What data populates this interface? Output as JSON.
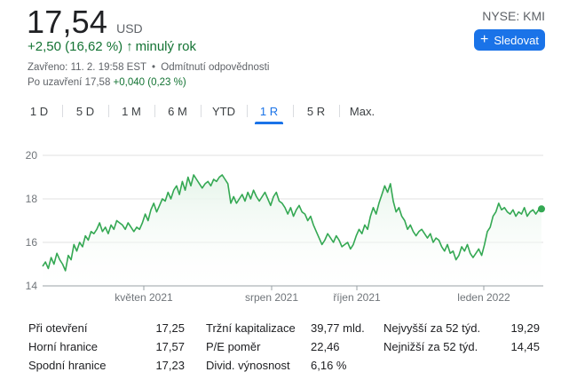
{
  "quote": {
    "price": "17,54",
    "currency": "USD",
    "change": "+2,50 (16,62 %)",
    "change_arrow": "🡑",
    "change_period": "minulý rok",
    "closed_label": "Zavřeno: 11. 2. 19:58 EST",
    "closed_sep": "•",
    "disclaimer": "Odmítnutí odpovědnosti",
    "after_label": "Po uzavření 17,58",
    "after_change": "+0,040 (0,23 %)"
  },
  "header": {
    "ticker": "NYSE: KMI",
    "follow_label": "Sledovat",
    "follow_icon": "plus-icon"
  },
  "tabs": [
    {
      "label": "1 D",
      "active": false
    },
    {
      "label": "5 D",
      "active": false
    },
    {
      "label": "1 M",
      "active": false
    },
    {
      "label": "6 M",
      "active": false
    },
    {
      "label": "YTD",
      "active": false
    },
    {
      "label": "1 R",
      "active": true
    },
    {
      "label": "5 R",
      "active": false
    },
    {
      "label": "Max.",
      "active": false
    }
  ],
  "colors": {
    "line": "#34a853",
    "fill_top": "#e6f4ea",
    "grid": "#e0e0e0",
    "axis": "#9aa0a6",
    "accent": "#1a73e8",
    "positive": "#137333"
  },
  "chart_data": {
    "type": "line",
    "y_ticks": [
      "20",
      "18",
      "16",
      "14"
    ],
    "ylim": [
      14,
      20
    ],
    "x_tick_labels": [
      "květen 2021",
      "srpen 2021",
      "říjen 2021",
      "leden 2022"
    ],
    "grid": true,
    "series": [
      {
        "values": [
          14.9,
          15.1,
          14.8,
          15.3,
          15.0,
          15.5,
          15.2,
          15.0,
          14.7,
          15.4,
          15.2,
          15.9,
          15.6,
          16.0,
          15.8,
          16.3,
          16.1,
          16.5,
          16.4,
          16.6,
          16.9,
          16.5,
          16.7,
          16.4,
          16.8,
          16.6,
          17.0,
          16.9,
          16.8,
          16.6,
          16.9,
          16.7,
          16.5,
          16.7,
          16.6,
          16.9,
          17.3,
          17.0,
          17.5,
          17.8,
          17.4,
          17.7,
          18.0,
          17.9,
          18.3,
          18.0,
          18.4,
          18.6,
          18.2,
          18.8,
          18.4,
          19.0,
          18.6,
          19.1,
          18.9,
          18.7,
          18.5,
          18.7,
          18.8,
          18.6,
          18.9,
          18.8,
          19.0,
          19.1,
          18.9,
          18.7,
          17.8,
          18.1,
          17.8,
          18.0,
          18.2,
          17.9,
          18.3,
          18.0,
          18.4,
          18.1,
          17.9,
          18.1,
          18.3,
          18.0,
          17.7,
          18.1,
          18.3,
          17.9,
          17.8,
          17.6,
          17.3,
          17.6,
          17.2,
          17.5,
          17.7,
          17.4,
          17.3,
          17.0,
          17.2,
          16.8,
          16.5,
          16.2,
          15.9,
          16.1,
          16.4,
          16.2,
          16.0,
          16.3,
          16.1,
          15.8,
          15.9,
          16.0,
          15.7,
          15.9,
          16.3,
          16.6,
          16.4,
          16.8,
          16.6,
          17.2,
          17.6,
          17.3,
          17.8,
          18.2,
          18.6,
          18.3,
          18.7,
          17.9,
          17.4,
          17.6,
          17.2,
          17.0,
          16.6,
          16.8,
          16.5,
          16.3,
          16.5,
          16.6,
          16.4,
          16.2,
          16.4,
          16.0,
          16.2,
          16.1,
          15.8,
          15.6,
          15.9,
          15.5,
          15.6,
          15.2,
          15.4,
          15.8,
          15.6,
          15.9,
          15.5,
          15.3,
          15.5,
          15.7,
          15.4,
          15.9,
          16.5,
          16.7,
          17.2,
          17.4,
          17.8,
          17.5,
          17.6,
          17.4,
          17.3,
          17.5,
          17.2,
          17.4,
          17.3,
          17.6,
          17.2,
          17.4,
          17.5,
          17.3,
          17.5,
          17.54
        ]
      }
    ]
  },
  "stats": {
    "col1": [
      {
        "label": "Při otevření",
        "value": "17,25"
      },
      {
        "label": "Horní hranice",
        "value": "17,57"
      },
      {
        "label": "Spodní hranice",
        "value": "17,23"
      }
    ],
    "col2": [
      {
        "label": "Tržní kapitalizace",
        "value": "39,77 mld."
      },
      {
        "label": "P/E poměr",
        "value": "22,46"
      },
      {
        "label": "Divid. výnosnost",
        "value": "6,16 %"
      }
    ],
    "col3": [
      {
        "label": "Nejvyšší za 52 týd.",
        "value": "19,29"
      },
      {
        "label": "Nejnižší za 52 týd.",
        "value": "14,45"
      }
    ]
  }
}
